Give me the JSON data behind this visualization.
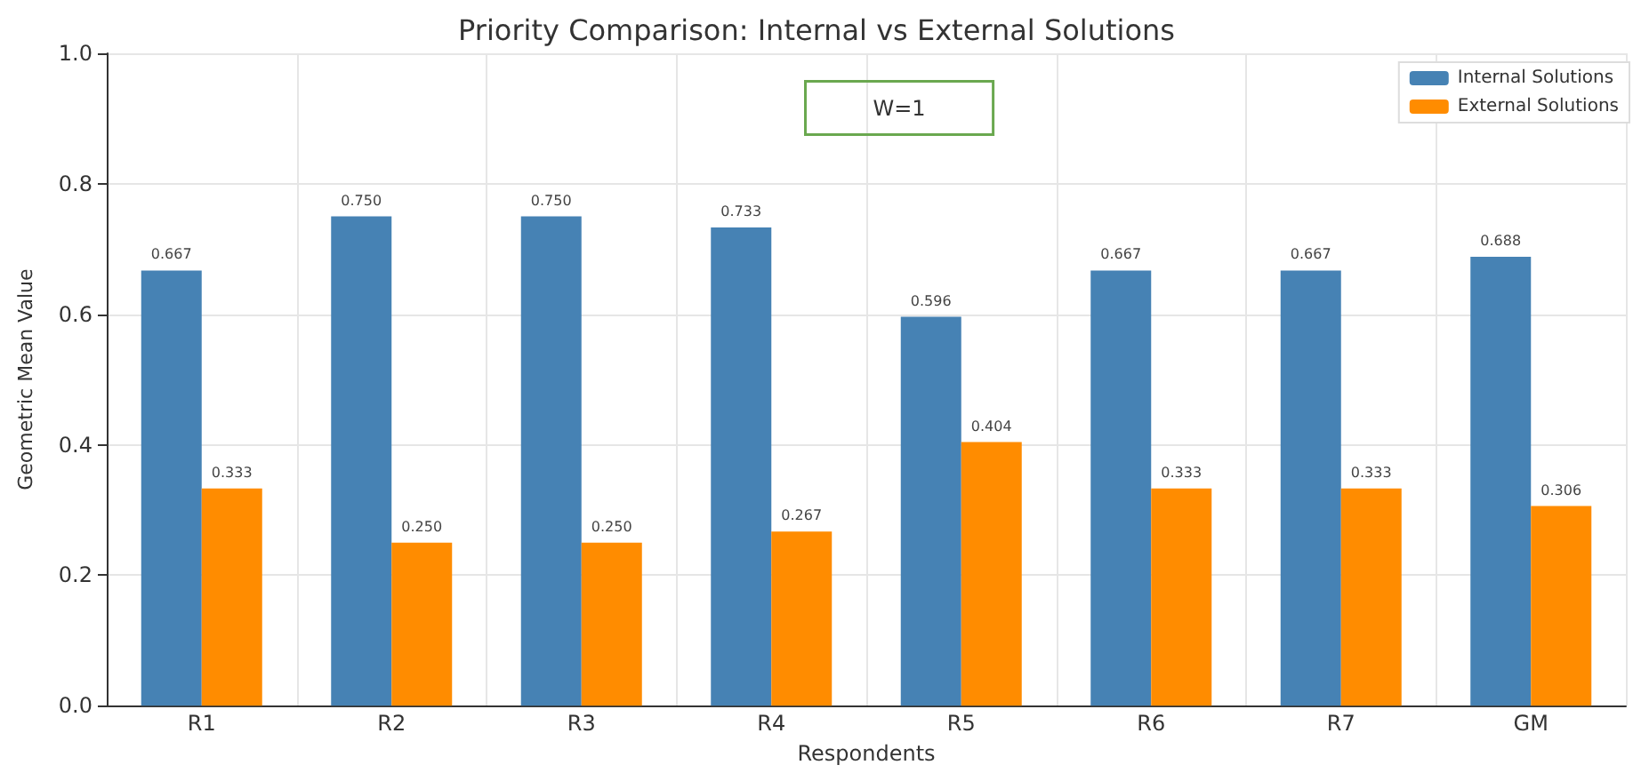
{
  "chart_data": {
    "type": "bar",
    "title": "Priority Comparison: Internal vs External Solutions",
    "xlabel": "Respondents",
    "ylabel": "Geometric Mean Value",
    "categories": [
      "R1",
      "R2",
      "R3",
      "R4",
      "R5",
      "R6",
      "R7",
      "GM"
    ],
    "series": [
      {
        "name": "Internal Solutions",
        "color": "#4682b4",
        "values": [
          0.667,
          0.75,
          0.75,
          0.733,
          0.596,
          0.667,
          0.667,
          0.688
        ],
        "value_labels": [
          "0.667",
          "0.750",
          "0.750",
          "0.733",
          "0.596",
          "0.667",
          "0.667",
          "0.688"
        ]
      },
      {
        "name": "External Solutions",
        "color": "#ff8c00",
        "values": [
          0.333,
          0.25,
          0.25,
          0.267,
          0.404,
          0.333,
          0.333,
          0.306
        ],
        "value_labels": [
          "0.333",
          "0.250",
          "0.250",
          "0.267",
          "0.404",
          "0.333",
          "0.333",
          "0.306"
        ]
      }
    ],
    "annotations": [
      "W=1"
    ],
    "ylim": [
      0,
      1
    ],
    "yticks": [
      {
        "value": 0,
        "label": "0.0"
      },
      {
        "value": 0.2,
        "label": "0.2"
      },
      {
        "value": 0.4,
        "label": "0.4"
      },
      {
        "value": 0.6,
        "label": "0.6"
      },
      {
        "value": 0.8,
        "label": "0.8"
      },
      {
        "value": 1,
        "label": "1.0"
      }
    ],
    "grid": true,
    "legend": "top right"
  }
}
